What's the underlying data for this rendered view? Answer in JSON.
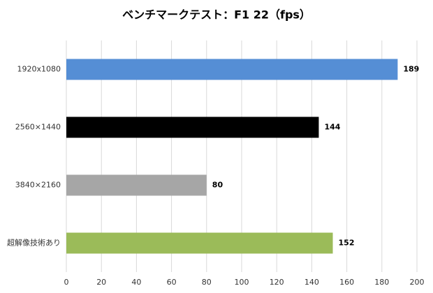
{
  "chart_data": {
    "type": "hbar",
    "title": "ベンチマークテスト：F1 22（fps）",
    "categories": [
      "1920x1080",
      "2560×1440",
      "3840×2160",
      "超解像技術あり"
    ],
    "values": [
      189,
      144,
      80,
      152
    ],
    "colors": [
      "#558ed5",
      "#000000",
      "#a6a6a6",
      "#9bbb59"
    ],
    "xlim": [
      0,
      200
    ],
    "xticks": [
      0,
      20,
      40,
      60,
      80,
      100,
      120,
      140,
      160,
      180,
      200
    ],
    "grid": true
  }
}
